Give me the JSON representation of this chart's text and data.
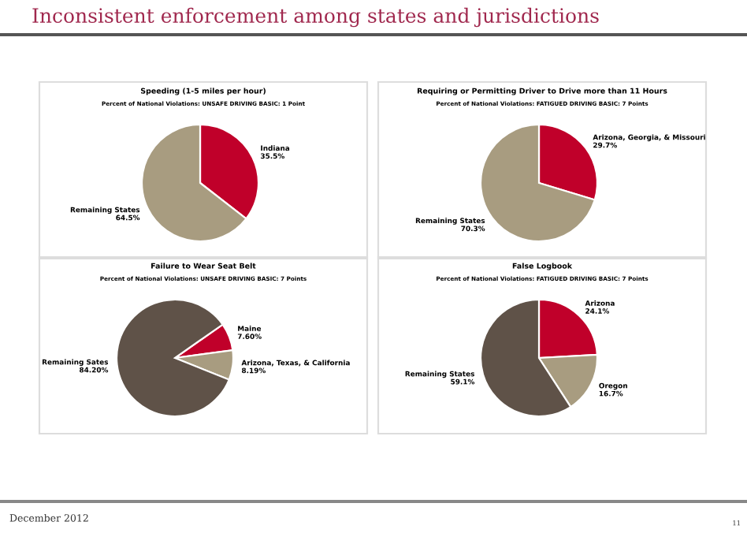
{
  "chart_data": [
    {
      "type": "pie",
      "title": "Speeding (1-5 miles per hour)",
      "subtitle": "Percent of National Violations: UNSAFE DRIVING BASIC: 1 Point",
      "categories": [
        "Indiana",
        "Remaining States"
      ],
      "values": [
        35.5,
        64.5
      ],
      "colors": [
        "#c0002a",
        "#a89c80"
      ],
      "value_labels": [
        "35.5%",
        "64.5%"
      ],
      "annotations": [
        "Inconsistent enforcement among states and jurisdictions",
        "December 2012",
        "11"
      ]
    },
    {
      "type": "pie",
      "title": "Requiring or Permitting Driver to Drive more than 11 Hours",
      "subtitle": "Percent of National Violations: FATIGUED DRIVING BASIC: 7 Points",
      "categories": [
        "Arizona, Georgia, & Missouri",
        "Remaining States"
      ],
      "values": [
        29.7,
        70.3
      ],
      "colors": [
        "#c0002a",
        "#a89c80"
      ],
      "value_labels": [
        "29.7%",
        "70.3%"
      ]
    },
    {
      "type": "pie",
      "title": "Failure to Wear Seat Belt",
      "subtitle": "Percent of National Violations: UNSAFE DRIVING BASIC: 7 Points",
      "categories": [
        "Maine",
        "Arizona, Texas, & California",
        "Remaining Sates"
      ],
      "values": [
        7.6,
        8.19,
        84.2
      ],
      "colors": [
        "#c0002a",
        "#a89c80",
        "#5f5248"
      ],
      "value_labels": [
        "7.60%",
        "8.19%",
        "84.20%"
      ]
    },
    {
      "type": "pie",
      "title": "False Logbook",
      "subtitle": "Percent of National Violations: FATIGUED DRIVING BASIC: 7 Points",
      "categories": [
        "Arizona",
        "Oregon",
        "Remaining States"
      ],
      "values": [
        24.1,
        16.7,
        59.1
      ],
      "colors": [
        "#c0002a",
        "#a89c80",
        "#5f5248"
      ],
      "value_labels": [
        "24.1%",
        "16.7%",
        "59.1%"
      ]
    }
  ]
}
